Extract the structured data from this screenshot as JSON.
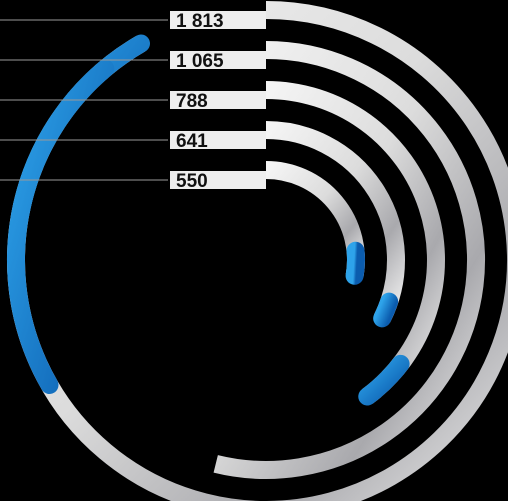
{
  "chart_data": {
    "type": "radial-bar",
    "title": "",
    "series": [
      {
        "label": "1 813",
        "value": 1813,
        "highlight_share": 0.15
      },
      {
        "label": "1 065",
        "value": 1065,
        "highlight_share": 0.0
      },
      {
        "label": "788",
        "value": 788,
        "highlight_share": 0.11
      },
      {
        "label": "641",
        "value": 641,
        "highlight_share": 0.02
      },
      {
        "label": "550",
        "value": 550,
        "highlight_share": 0.16
      }
    ],
    "outer_highlight_sweep": {
      "series_label": "1 813",
      "start": "bottom-left",
      "end": "left-upper"
    }
  },
  "colors": {
    "background": "#000000",
    "track_light": "#f2f2f2",
    "track_dark": "#8f8f95",
    "accent": "#1f95dd",
    "accent_dark": "#0c5fb1",
    "label_text": "#111111",
    "leader_line": "#9a9a9a"
  }
}
